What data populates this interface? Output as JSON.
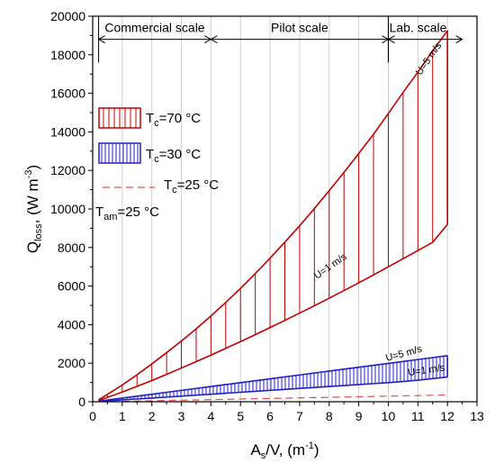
{
  "chart_data": {
    "type": "area",
    "title": "",
    "xlabel": {
      "main": "A",
      "sub": "s",
      "rest": "/V, (m",
      "sup": "-1",
      "close": ")"
    },
    "ylabel": {
      "main": "Q",
      "sub": "loss",
      "rest": ", (W m",
      "sup": "-3",
      "close": ")"
    },
    "xlim": [
      0,
      13
    ],
    "ylim": [
      0,
      20000
    ],
    "grid": "vertical",
    "x_ticks": [
      "0",
      "1",
      "2",
      "3",
      "4",
      "5",
      "6",
      "7",
      "8",
      "9",
      "10",
      "11",
      "12",
      "13"
    ],
    "y_ticks": [
      "0",
      "2000",
      "4000",
      "6000",
      "8000",
      "10000",
      "12000",
      "14000",
      "16000",
      "18000",
      "20000"
    ],
    "scale_regions": [
      {
        "label": "Commercial scale",
        "x_start": 0.2,
        "x_end": 4
      },
      {
        "label": "Pilot scale",
        "x_start": 4,
        "x_end": 10
      },
      {
        "label": "Lab. scale",
        "x_start": 10,
        "x_end": 12.5
      }
    ],
    "x": [
      0.2,
      0.5,
      1,
      1.5,
      2,
      2.5,
      3,
      3.5,
      4,
      4.5,
      5,
      5.5,
      6,
      6.5,
      7,
      7.5,
      8,
      8.5,
      9,
      9.5,
      10,
      10.5,
      11,
      11.5,
      12
    ],
    "series": [
      {
        "name": "Tc=70 °C",
        "color": "#c00000",
        "fill": "hatch",
        "upper": [
          100,
          380,
          870,
          1400,
          1960,
          2550,
          3150,
          3780,
          4450,
          5150,
          5880,
          6650,
          7450,
          8280,
          9130,
          10020,
          10950,
          11900,
          12880,
          13880,
          14950,
          16050,
          17100,
          18200,
          19250
        ],
        "lower": [
          60,
          230,
          500,
          800,
          1100,
          1420,
          1750,
          2080,
          2420,
          2770,
          3120,
          3480,
          3850,
          4220,
          4600,
          4980,
          5370,
          5770,
          6170,
          6580,
          7000,
          7420,
          7840,
          8270,
          9200
        ],
        "upper_label": "U=5 m/s",
        "lower_label": "U=1 m/s"
      },
      {
        "name": "Tc=30 °C",
        "color": "#2020c0",
        "fill": "hatch",
        "upper": [
          30,
          90,
          190,
          290,
          390,
          490,
          590,
          690,
          790,
          890,
          990,
          1090,
          1190,
          1290,
          1390,
          1490,
          1590,
          1690,
          1790,
          1890,
          1990,
          2090,
          2190,
          2290,
          2390
        ],
        "lower": [
          15,
          45,
          95,
          140,
          190,
          240,
          290,
          340,
          390,
          440,
          490,
          540,
          590,
          640,
          690,
          740,
          790,
          840,
          890,
          940,
          990,
          1050,
          1120,
          1200,
          1280
        ],
        "upper_label": "U=5 m/s",
        "lower_label": "U=1 m/s"
      },
      {
        "name": "Tc=25 °C",
        "color": "#e05050",
        "fill": "dashed-line",
        "values": [
          5,
          10,
          20,
          35,
          50,
          65,
          80,
          95,
          110,
          125,
          140,
          155,
          170,
          185,
          200,
          215,
          230,
          245,
          260,
          275,
          290,
          305,
          320,
          335,
          350
        ]
      }
    ],
    "legend": {
      "placement": "left",
      "entries": [
        {
          "pre": "T",
          "sub": "c",
          "post": "=70 °C"
        },
        {
          "pre": "T",
          "sub": "c",
          "post": "=30 °C"
        },
        {
          "pre": "T",
          "sub": "c",
          "post": "=25 °C"
        }
      ],
      "note": {
        "pre": "T",
        "sub": "am",
        "post": "=25 °C"
      }
    }
  }
}
